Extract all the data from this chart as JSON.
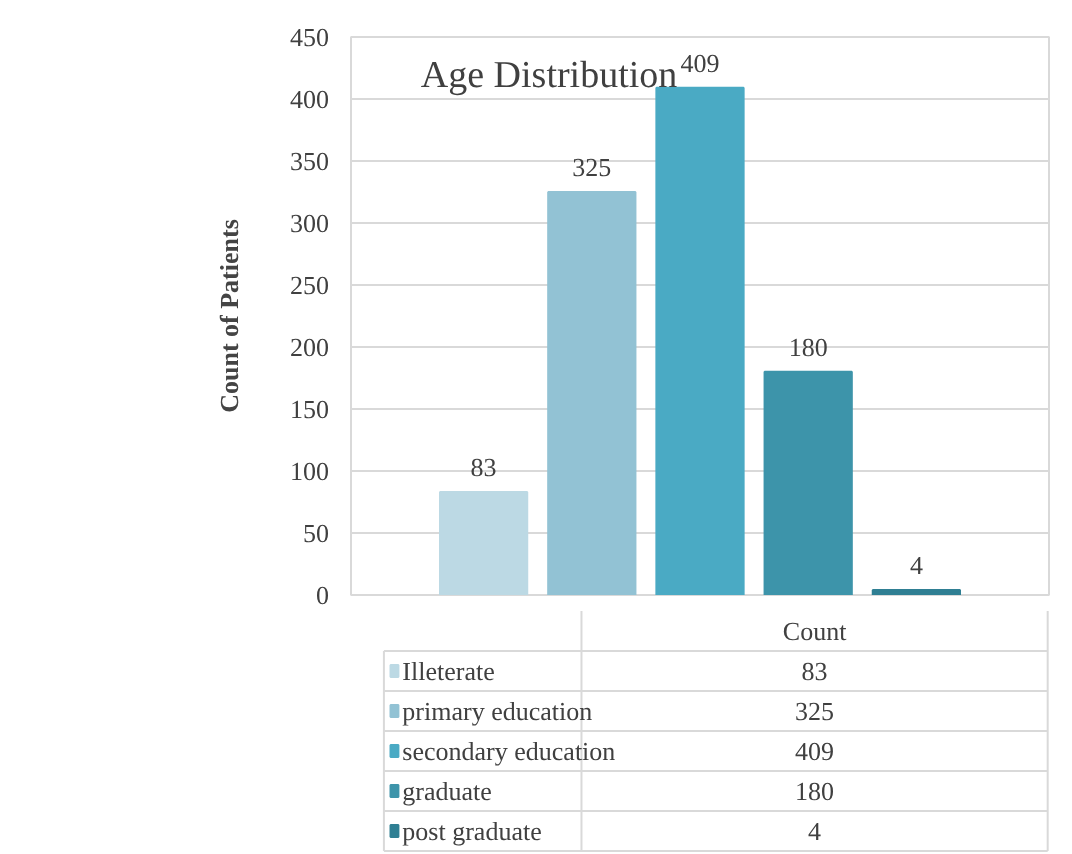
{
  "chart_data": {
    "type": "bar",
    "title": "Age Distribution",
    "ylabel": "Count of Patients",
    "categories": [
      "Count"
    ],
    "series": [
      {
        "name": "Illeterate",
        "color": "#bcd9e4",
        "values": [
          83
        ]
      },
      {
        "name": "primary education",
        "color": "#92c2d4",
        "values": [
          325
        ]
      },
      {
        "name": "secondary education",
        "color": "#4aaac4",
        "values": [
          409
        ]
      },
      {
        "name": "graduate",
        "color": "#3d94aa",
        "values": [
          180
        ]
      },
      {
        "name": "post graduate",
        "color": "#2f7f93",
        "values": [
          4
        ]
      }
    ],
    "annotations": [
      "83",
      "325",
      "409",
      "180",
      "4"
    ],
    "ylim": [
      0,
      450
    ],
    "yticks": [
      0,
      50,
      100,
      150,
      200,
      250,
      300,
      350,
      400,
      450
    ],
    "grid": "y",
    "data_labels": true,
    "legend": "bottom"
  }
}
